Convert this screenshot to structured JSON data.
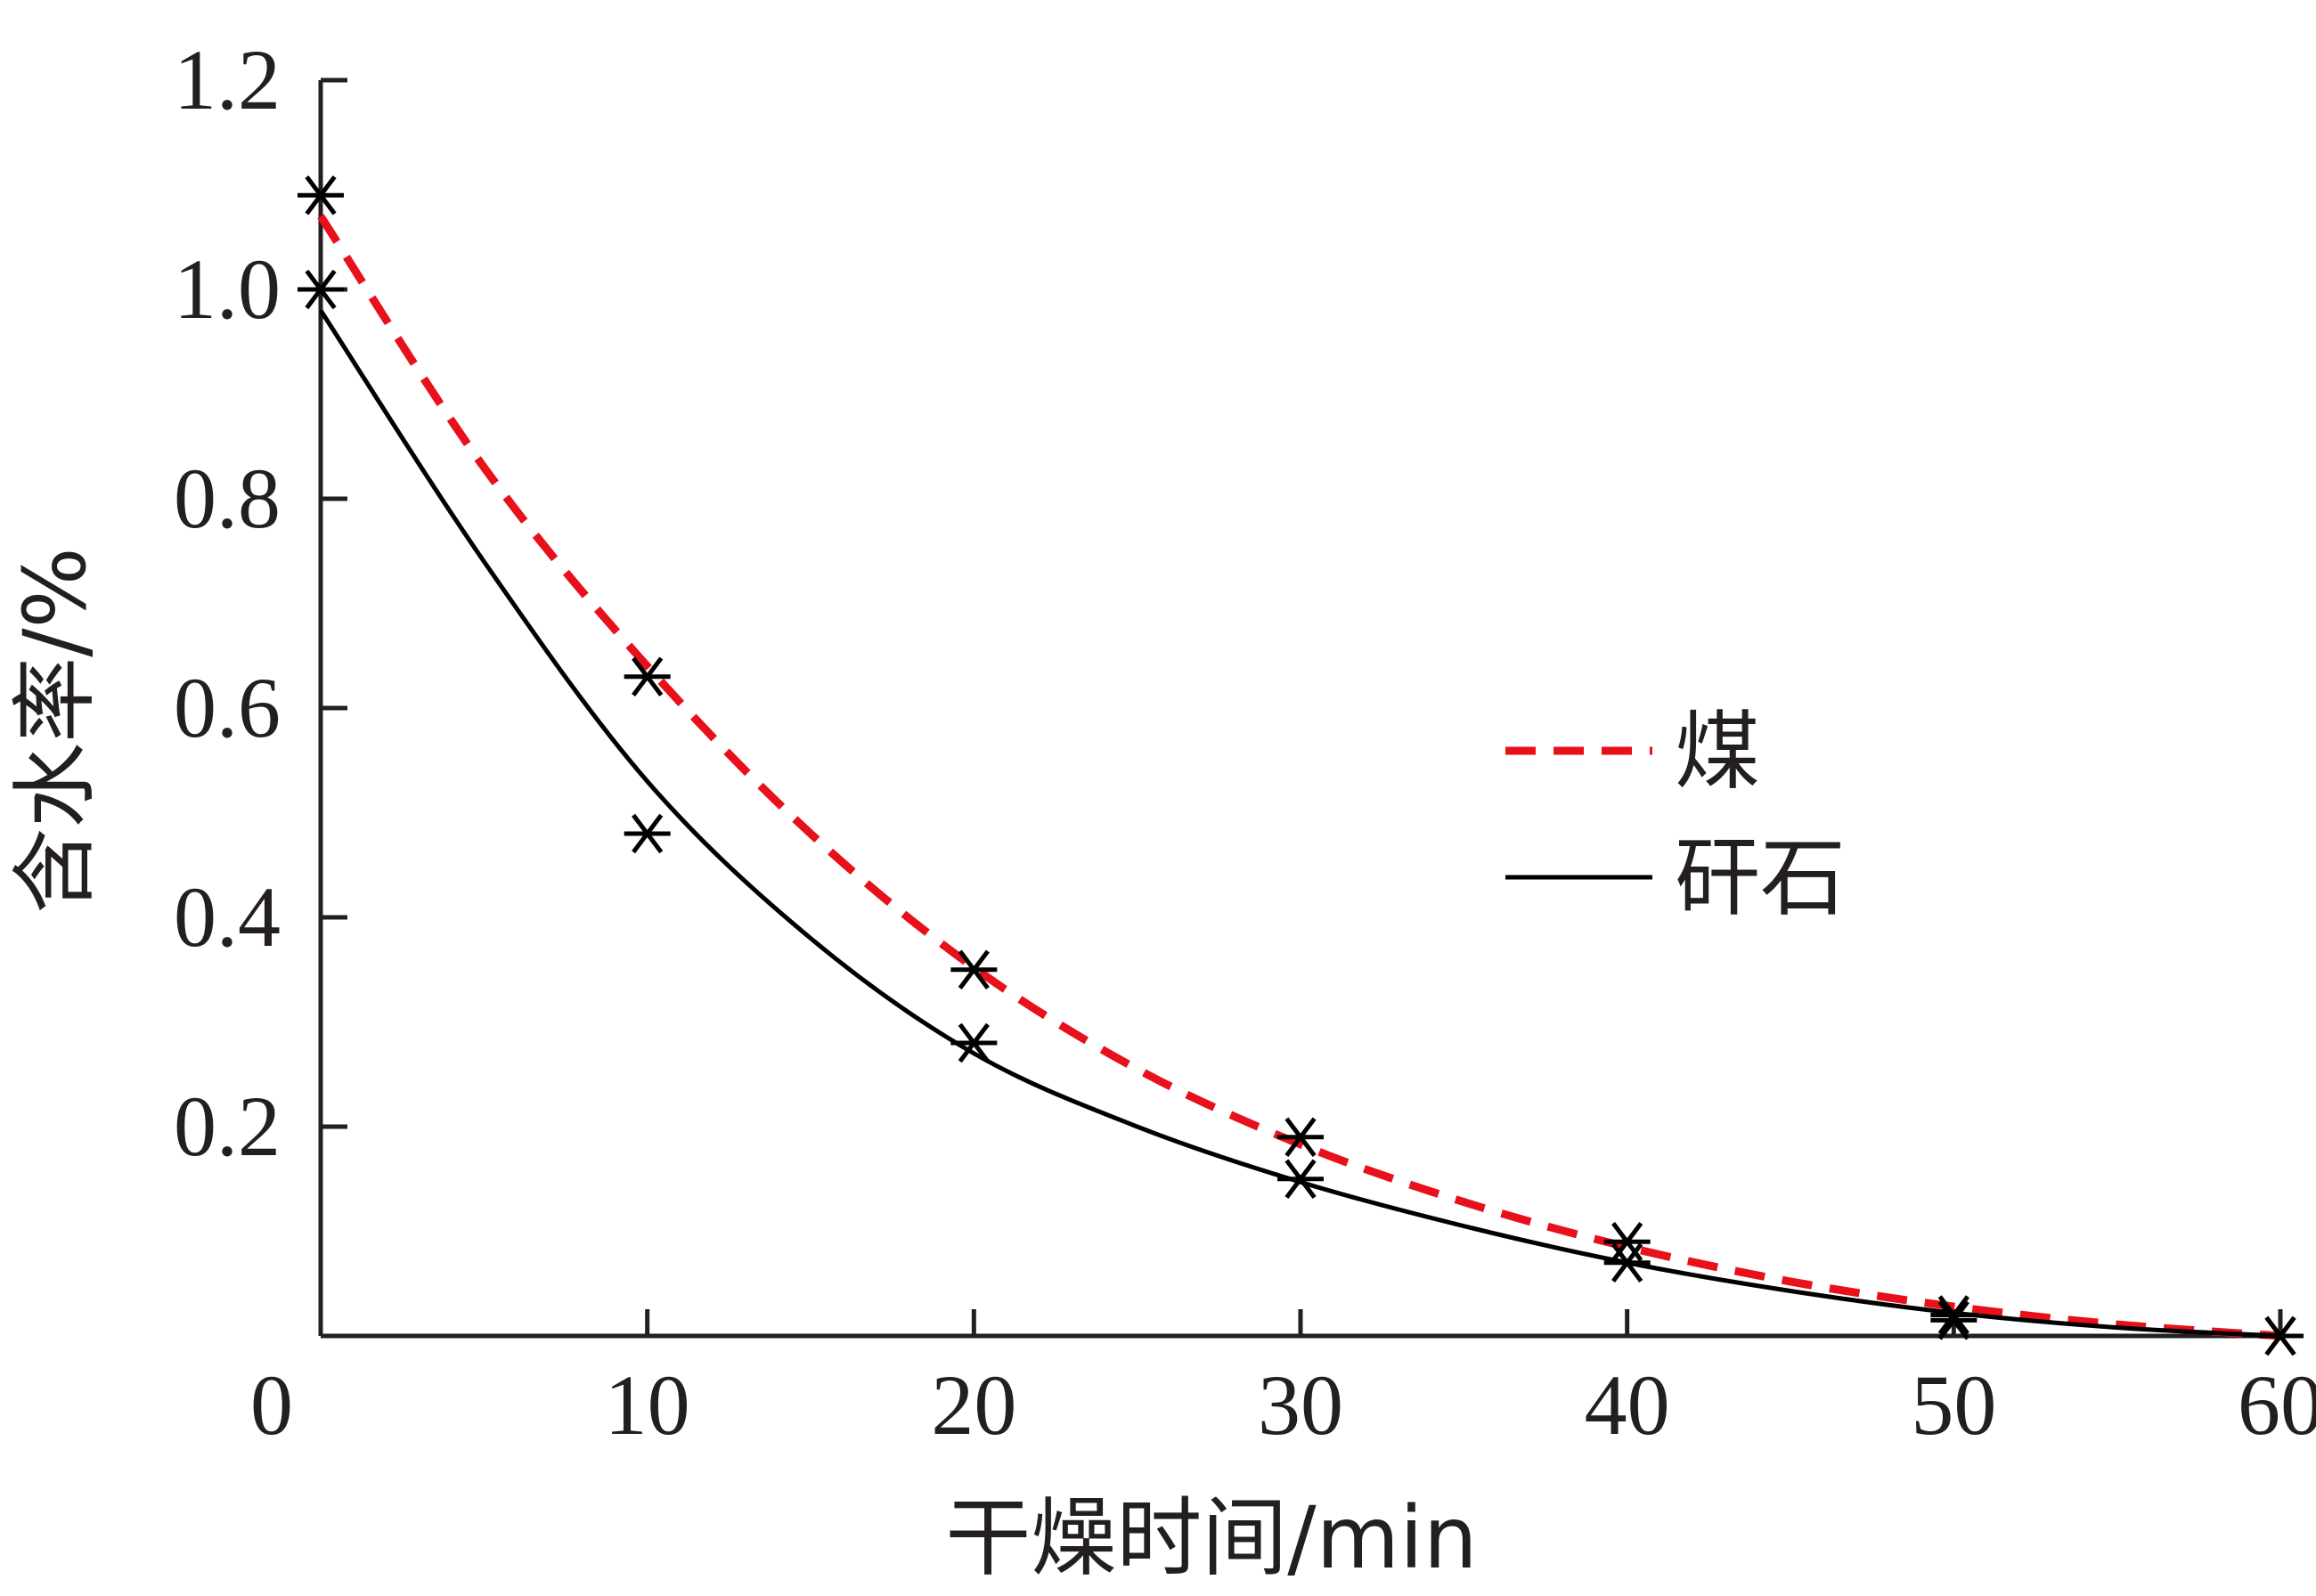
{
  "chart_data": {
    "type": "line",
    "title": "",
    "xlabel": "干燥时间/min",
    "ylabel": "含水率/%",
    "xlim": [
      0,
      60
    ],
    "ylim": [
      0,
      1.2
    ],
    "x_ticks": [
      "0",
      "10",
      "20",
      "30",
      "40",
      "50",
      "60"
    ],
    "y_ticks": [
      "0.2",
      "0.4",
      "0.6",
      "0.8",
      "1.0",
      "1.2"
    ],
    "grid": false,
    "legend_position": "right",
    "series": [
      {
        "name": "煤",
        "style": "dashed",
        "color": "#e8101a",
        "fit_curve": {
          "x": [
            0,
            5,
            10,
            15,
            20,
            25,
            30,
            35,
            40,
            45,
            50,
            55,
            60
          ],
          "y": [
            1.07,
            0.83,
            0.64,
            0.48,
            0.352,
            0.255,
            0.183,
            0.128,
            0.085,
            0.052,
            0.028,
            0.011,
            0.0
          ]
        },
        "points": {
          "x": [
            0,
            10,
            20,
            30,
            40,
            50,
            60
          ],
          "y": [
            1.09,
            0.63,
            0.35,
            0.19,
            0.09,
            0.02,
            0.0
          ]
        }
      },
      {
        "name": "矸石",
        "style": "solid",
        "color": "#000000",
        "fit_curve": {
          "x": [
            0,
            5,
            10,
            15,
            20,
            25,
            30,
            35,
            40,
            45,
            50,
            55,
            60
          ],
          "y": [
            0.98,
            0.74,
            0.53,
            0.38,
            0.27,
            0.2,
            0.147,
            0.105,
            0.07,
            0.043,
            0.022,
            0.008,
            0.0
          ]
        },
        "points": {
          "x": [
            0,
            10,
            20,
            30,
            40,
            50,
            60
          ],
          "y": [
            1.0,
            0.48,
            0.28,
            0.15,
            0.07,
            0.015,
            0.0
          ]
        }
      }
    ]
  },
  "colors": {
    "axis": "#231f20",
    "coal": "#e8101a",
    "gangue": "#000000"
  }
}
